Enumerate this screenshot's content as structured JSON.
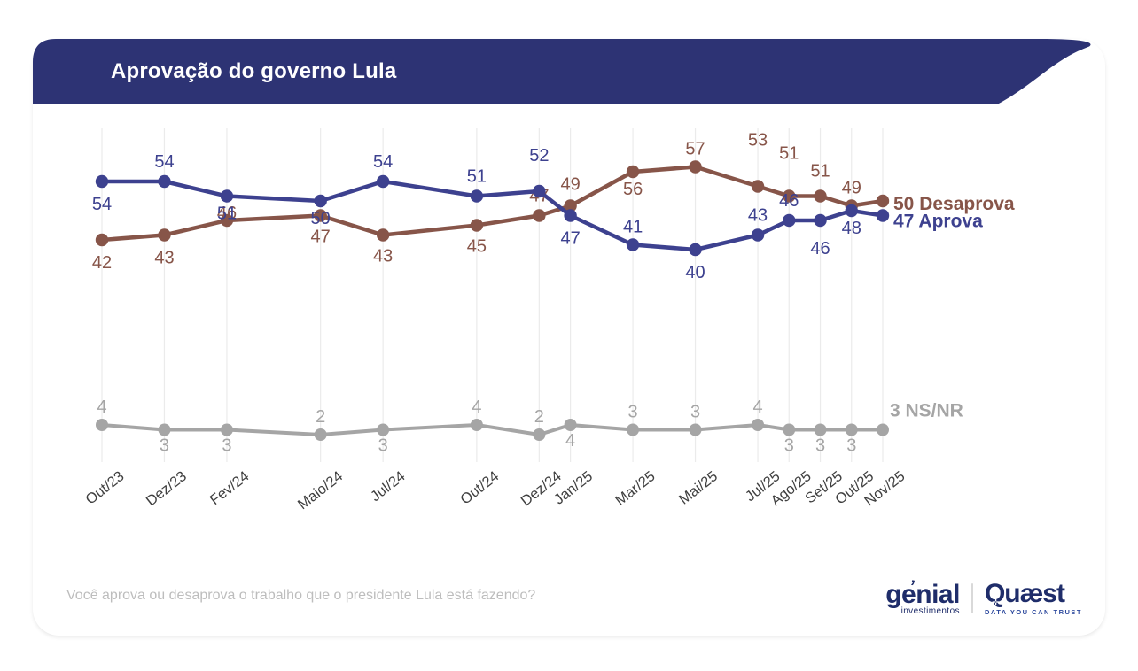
{
  "header": {
    "title": "Aprovação do governo Lula"
  },
  "colors": {
    "header_bg": "#2d3374",
    "approve": "#3d418f",
    "disapprove": "#875549",
    "neutral": "#a5a5a5",
    "grid": "#ebebeb",
    "axis_text": "#3f3f3f",
    "question_text": "#bdbdbd",
    "logo_navy": "#1f2d6a",
    "quaest_tagline": "#2e4a9e"
  },
  "chart_data": {
    "type": "line",
    "title": "Aprovação do governo Lula",
    "categories": [
      "Out/23",
      "Dez/23",
      "Fev/24",
      "Maio/24",
      "Jul/24",
      "Out/24",
      "Dez/24",
      "Jan/25",
      "Mar/25",
      "Mai/25",
      "Jul/25",
      "Ago/25",
      "Set/25",
      "Out/25",
      "Nov/25"
    ],
    "month_offsets": [
      0,
      2,
      4,
      7,
      9,
      12,
      14,
      15,
      17,
      19,
      21,
      22,
      23,
      24,
      25
    ],
    "series": [
      {
        "name": "Aprova",
        "color": "#3d418f",
        "values": [
          54,
          54,
          51,
          50,
          54,
          51,
          52,
          47,
          41,
          40,
          43,
          46,
          46,
          48,
          47
        ],
        "label_dy": [
          32,
          -16,
          26,
          26,
          -16,
          -16,
          -34,
          32,
          -14,
          32,
          -16,
          -16,
          38,
          26,
          null
        ],
        "end_label": "47 Aprova",
        "end_dx": 12,
        "end_dy": 13
      },
      {
        "name": "Desaprova",
        "color": "#875549",
        "values": [
          42,
          43,
          46,
          47,
          43,
          45,
          47,
          49,
          56,
          57,
          53,
          51,
          51,
          49,
          50
        ],
        "label_dy": [
          32,
          32,
          -2,
          30,
          30,
          30,
          -16,
          -18,
          26,
          -14,
          -46,
          -42,
          -22,
          -14,
          null
        ],
        "end_label": "50 Desaprova",
        "end_dx": 12,
        "end_dy": 10
      },
      {
        "name": "NS/NR",
        "color": "#a5a5a5",
        "values": [
          4,
          3,
          3,
          2,
          3,
          4,
          2,
          4,
          3,
          3,
          4,
          3,
          3,
          3,
          3
        ],
        "label_dy": [
          -14,
          24,
          24,
          -14,
          24,
          -14,
          -14,
          24,
          -14,
          -14,
          -14,
          24,
          24,
          24,
          null
        ],
        "end_label": "3 NS/NR",
        "end_dx": 8,
        "end_dy": -15
      }
    ],
    "grid": true,
    "y_axis_hidden": true,
    "legend_position": "line-end",
    "xlabel_rotation": -38
  },
  "footer": {
    "question": "Você aprova ou desaprova o trabalho que o presidente Lula está fazendo?"
  },
  "logos": {
    "genial": {
      "name": "genial",
      "accent": "ʼ",
      "sub": "investimentos"
    },
    "quaest": {
      "name": "Quæst",
      "icon": "✛",
      "sub": "DATA YOU CAN TRUST"
    }
  }
}
